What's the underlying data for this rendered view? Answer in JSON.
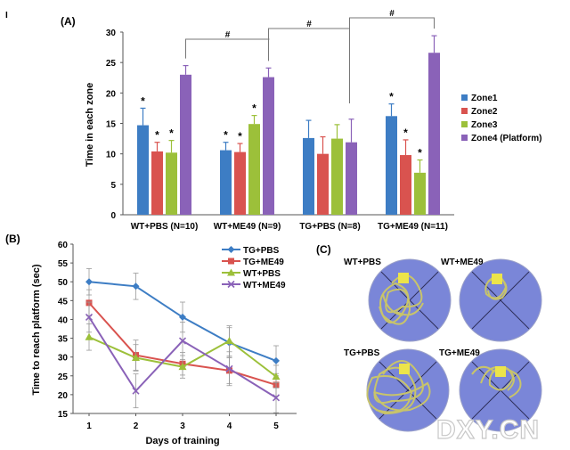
{
  "corner_mark": "I",
  "watermark": "DXY.CN",
  "chart_data": [
    {
      "panel": "(A)",
      "type": "bar",
      "ylabel": "Time in each zone",
      "ylim": [
        0,
        30
      ],
      "yticks": [
        0,
        5,
        10,
        15,
        20,
        25,
        30
      ],
      "categories": [
        "WT+PBS (N=10)",
        "WT+ME49 (N=9)",
        "TG+PBS (N=8)",
        "TG+ME49 (N=11)"
      ],
      "series": [
        {
          "name": "Zone1",
          "color": "#3d7dc4",
          "values": [
            14.7,
            10.6,
            12.6,
            16.2
          ],
          "errors": [
            2.8,
            1.3,
            2.9,
            2.0
          ],
          "stars": [
            true,
            true,
            false,
            true
          ]
        },
        {
          "name": "Zone2",
          "color": "#d9534f",
          "values": [
            10.4,
            10.3,
            10.0,
            9.8
          ],
          "errors": [
            1.5,
            1.4,
            2.8,
            2.5
          ],
          "stars": [
            true,
            true,
            false,
            true
          ]
        },
        {
          "name": "Zone3",
          "color": "#9cc03a",
          "values": [
            10.2,
            14.9,
            12.5,
            6.9
          ],
          "errors": [
            2.0,
            1.4,
            2.3,
            2.1
          ],
          "stars": [
            true,
            true,
            false,
            true
          ]
        },
        {
          "name": "Zone4 (Platform)",
          "color": "#8a62b8",
          "values": [
            23.0,
            22.6,
            11.9,
            26.6
          ],
          "errors": [
            1.5,
            1.5,
            3.8,
            2.8
          ],
          "stars": [
            false,
            false,
            false,
            false
          ]
        }
      ],
      "significance": "#",
      "legend_position": "right"
    },
    {
      "panel": "(B)",
      "type": "line",
      "xlabel": "Days of training",
      "ylabel": "Time to reach platform (sec)",
      "x": [
        1,
        2,
        3,
        4,
        5
      ],
      "ylim": [
        15,
        60
      ],
      "yticks": [
        15,
        20,
        25,
        30,
        35,
        40,
        45,
        50,
        55,
        60
      ],
      "series": [
        {
          "name": "TG+PBS",
          "color": "#3d7dc4",
          "marker": "diamond",
          "values": [
            50.0,
            48.8,
            40.6,
            33.8,
            29.0
          ],
          "errors": [
            3.5,
            3.5,
            4.0,
            4.0,
            4.0
          ]
        },
        {
          "name": "TG+ME49",
          "color": "#d9534f",
          "marker": "square",
          "values": [
            44.4,
            30.5,
            28.2,
            26.4,
            22.6
          ],
          "errors": [
            3.5,
            4.0,
            3.0,
            3.5,
            3.0
          ]
        },
        {
          "name": "WT+PBS",
          "color": "#9cc03a",
          "marker": "triangle",
          "values": [
            35.3,
            29.8,
            27.4,
            34.3,
            24.8
          ],
          "errors": [
            3.5,
            3.5,
            3.0,
            4.0,
            3.0
          ]
        },
        {
          "name": "WT+ME49",
          "color": "#8a62b8",
          "marker": "x",
          "values": [
            40.6,
            21.0,
            34.3,
            26.9,
            19.2
          ],
          "errors": [
            4.0,
            4.5,
            5.0,
            4.5,
            4.0
          ]
        }
      ],
      "legend_position": "top-right"
    }
  ],
  "panel_c": {
    "label": "(C)",
    "groups": [
      "WT+PBS",
      "WT+ME49",
      "TG+PBS",
      "TG+ME49"
    ],
    "pool_color": "#7a86d8",
    "path_color": "#c8c46a",
    "platform_color": "#ece44a"
  }
}
